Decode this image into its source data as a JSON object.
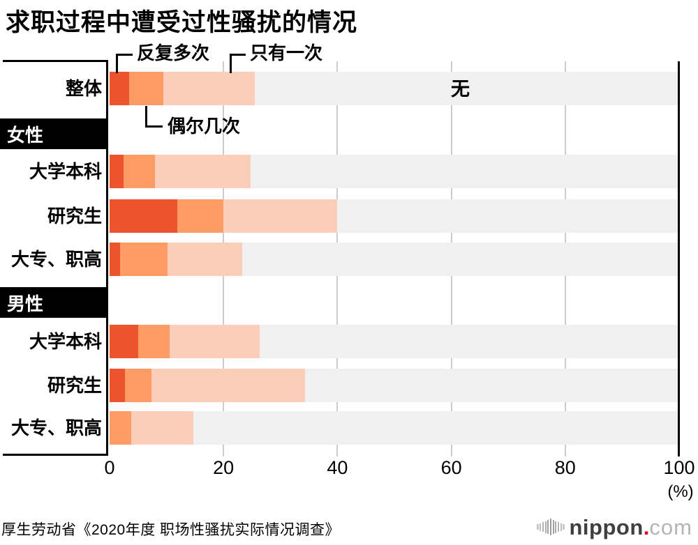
{
  "title": "求职过程中遭受过性骚扰的情况",
  "source": "厚生劳动省《2020年度 职场性骚扰实际情况调查》",
  "logo": {
    "name": "nippon",
    "dot": ".",
    "tld": "com"
  },
  "annotations": {
    "repeated": "反复多次",
    "once": "只有一次",
    "sometimes": "偶尔几次",
    "none": "无"
  },
  "axis": {
    "unit": "(%)"
  },
  "chart_data": {
    "type": "bar",
    "orientation": "horizontal",
    "stacked": true,
    "unit": "%",
    "xlim": [
      0,
      100
    ],
    "x_ticks": [
      0,
      20,
      40,
      60,
      80,
      100
    ],
    "grid": true,
    "series_labels": [
      "反复多次",
      "偶尔几次",
      "只有一次",
      "无"
    ],
    "colors": {
      "repeated": "#ec552b",
      "sometimes": "#fd9c64",
      "once": "#fccdb9",
      "none": "#f0f0f0",
      "header_bg": "#000000",
      "header_text": "#ffffff",
      "gridline": "#cccccc"
    },
    "rows": [
      {
        "kind": "bar",
        "label": "整体",
        "values": [
          3.4,
          6.0,
          16.1
        ],
        "total": 25.5,
        "none": 74.5
      },
      {
        "kind": "header",
        "label": "女性"
      },
      {
        "kind": "bar",
        "label": "大学本科",
        "values": [
          2.4,
          5.6,
          16.7
        ],
        "total": 24.7,
        "none": 75.3
      },
      {
        "kind": "bar",
        "label": "研究生",
        "values": [
          11.9,
          8.1,
          20.0
        ],
        "total": 40.0,
        "none": 60.0
      },
      {
        "kind": "bar",
        "label": "大专、职高",
        "values": [
          1.8,
          8.4,
          13.1
        ],
        "total": 23.3,
        "none": 76.7
      },
      {
        "kind": "header",
        "label": "男性"
      },
      {
        "kind": "bar",
        "label": "大学本科",
        "values": [
          5.0,
          5.5,
          15.8
        ],
        "total": 26.3,
        "none": 73.7
      },
      {
        "kind": "bar",
        "label": "研究生",
        "values": [
          2.7,
          4.6,
          27.0
        ],
        "total": 34.3,
        "none": 65.7
      },
      {
        "kind": "bar",
        "label": "大专、职高",
        "values": [
          0.0,
          3.8,
          10.9
        ],
        "total": 14.7,
        "none": 85.3
      }
    ]
  }
}
